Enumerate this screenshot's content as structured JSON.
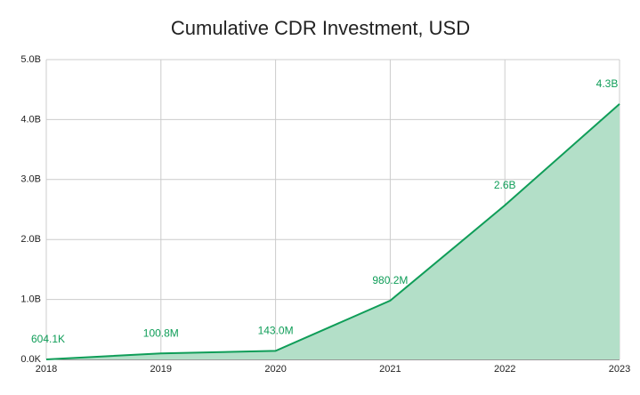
{
  "chart_data": {
    "type": "area",
    "title": "Cumulative CDR Investment, USD",
    "x": [
      2018,
      2019,
      2020,
      2021,
      2022,
      2023
    ],
    "xlim": [
      2018,
      2023
    ],
    "xticks": [
      2018,
      2019,
      2020,
      2021,
      2022,
      2023
    ],
    "values": [
      604100,
      100800000,
      143000000,
      980200000,
      2570000000,
      4260000000
    ],
    "value_labels": [
      "604.1K",
      "100.8M",
      "143.0M",
      "980.2M",
      "2.6B",
      "4.3B"
    ],
    "ylim": [
      0,
      5000000000
    ],
    "yticks": [
      {
        "value": 0,
        "label": "0.0K"
      },
      {
        "value": 1000000000,
        "label": "1.0B"
      },
      {
        "value": 2000000000,
        "label": "2.0B"
      },
      {
        "value": 3000000000,
        "label": "3.0B"
      },
      {
        "value": 4000000000,
        "label": "4.0B"
      },
      {
        "value": 5000000000,
        "label": "5.0B"
      }
    ],
    "color": "#0f9d58",
    "fill_color": "#b3dfc8",
    "grid": true
  }
}
